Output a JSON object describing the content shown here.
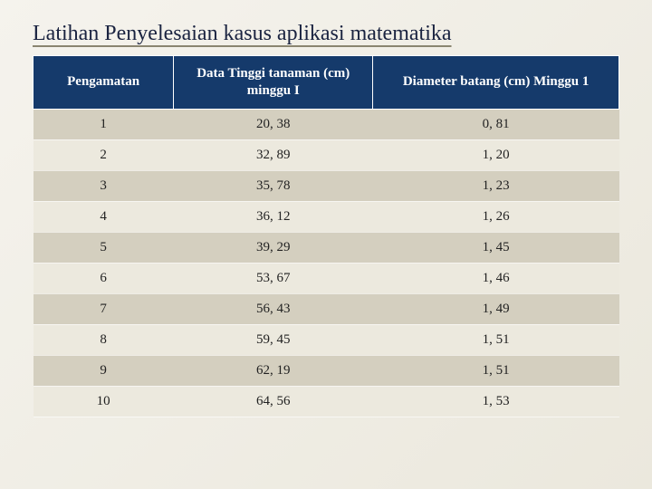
{
  "title": "Latihan Penyelesaian kasus aplikasi matematika",
  "table": {
    "type": "table",
    "header_bg": "#153a6b",
    "header_color": "#ffffff",
    "row_odd_bg": "#d4cfbf",
    "row_even_bg": "#ece9de",
    "text_color": "#222222",
    "font_family": "Georgia, serif",
    "header_fontsize": 15,
    "cell_fontsize": 15,
    "columns": [
      {
        "label": "Pengamatan",
        "width": "24%",
        "align": "center"
      },
      {
        "label": "Data Tinggi tanaman (cm) minggu I",
        "width": "34%",
        "align": "center"
      },
      {
        "label": "Diameter batang (cm) Minggu 1",
        "width": "42%",
        "align": "center"
      }
    ],
    "rows": [
      [
        "1",
        "20, 38",
        "0, 81"
      ],
      [
        "2",
        "32, 89",
        "1, 20"
      ],
      [
        "3",
        "35, 78",
        "1, 23"
      ],
      [
        "4",
        "36, 12",
        "1, 26"
      ],
      [
        "5",
        "39, 29",
        "1, 45"
      ],
      [
        "6",
        "53, 67",
        "1, 46"
      ],
      [
        "7",
        "56, 43",
        "1, 49"
      ],
      [
        "8",
        "59, 45",
        "1, 51"
      ],
      [
        "9",
        "62, 19",
        "1, 51"
      ],
      [
        "10",
        "64, 56",
        "1, 53"
      ]
    ]
  },
  "background": {
    "gradient_from": "#f5f3ed",
    "gradient_to": "#ebe8dd"
  }
}
